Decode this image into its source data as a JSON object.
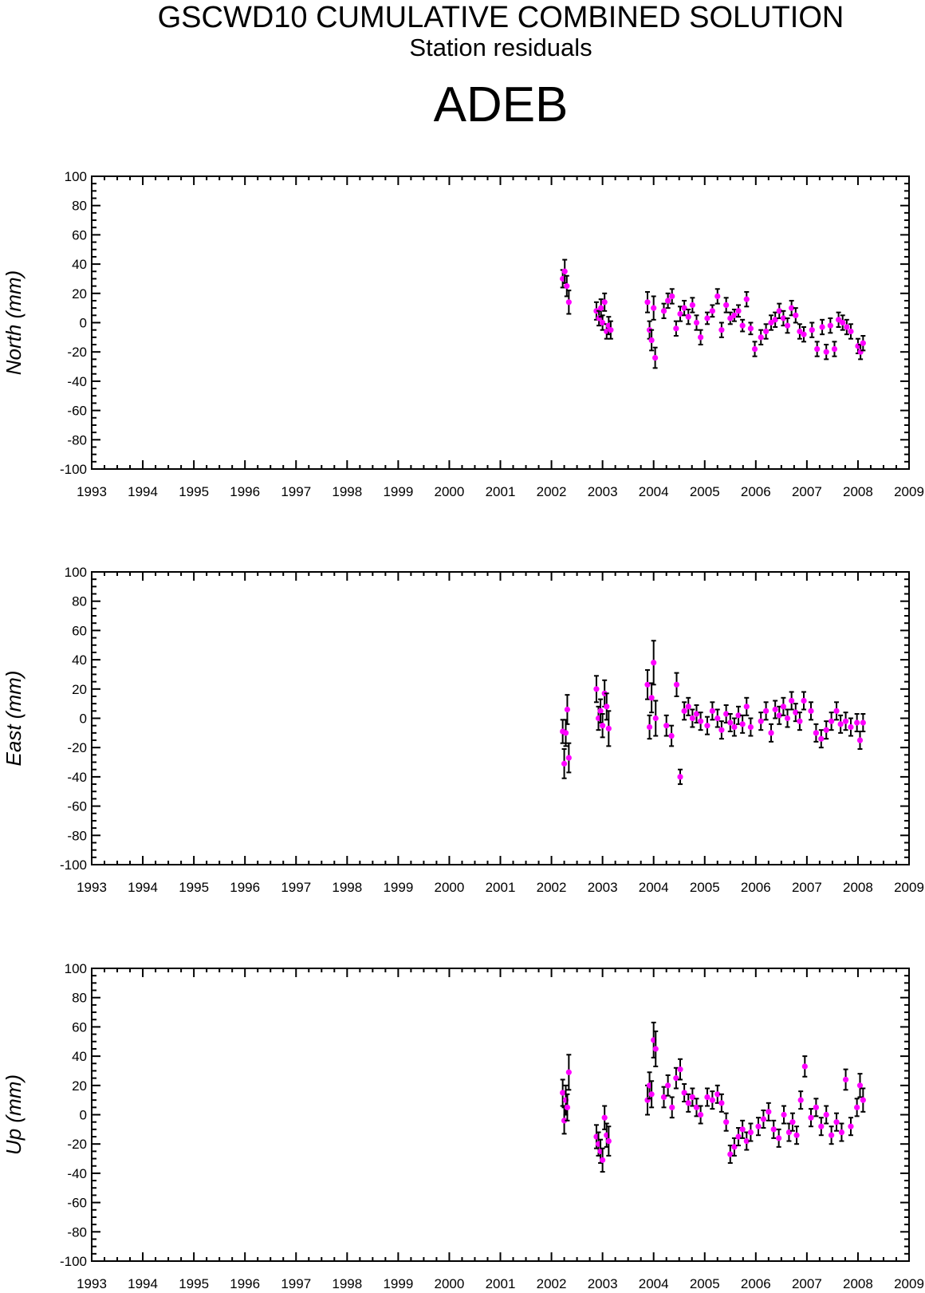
{
  "title": "GSCWD10 CUMULATIVE COMBINED SOLUTION",
  "subtitle": "Station residuals",
  "station": "ADEB",
  "colors": {
    "marker": "#ff00ff",
    "errorbar": "#000000",
    "axis": "#000000"
  },
  "chart_data": [
    {
      "type": "scatter",
      "ylabel": "North (mm)",
      "xlim": [
        1993,
        2009
      ],
      "ylim": [
        -100,
        100
      ],
      "x_ticks": [
        "1993",
        "1994",
        "1995",
        "1996",
        "1997",
        "1998",
        "1999",
        "2000",
        "2001",
        "2002",
        "2003",
        "2004",
        "2005",
        "2006",
        "2007",
        "2008",
        "2009"
      ],
      "y_ticks": [
        "100",
        "80",
        "60",
        "40",
        "20",
        "0",
        "-20",
        "-40",
        "-60",
        "-80",
        "-100"
      ],
      "points": [
        [
          2002.22,
          30,
          6
        ],
        [
          2002.26,
          35,
          8
        ],
        [
          2002.3,
          25,
          7
        ],
        [
          2002.34,
          14,
          8
        ],
        [
          2002.88,
          8,
          6
        ],
        [
          2002.93,
          3,
          5
        ],
        [
          2002.97,
          10,
          6
        ],
        [
          2003.0,
          0,
          5
        ],
        [
          2003.04,
          14,
          6
        ],
        [
          2003.08,
          -6,
          5
        ],
        [
          2003.12,
          -2,
          6
        ],
        [
          2003.16,
          -5,
          6
        ],
        [
          2003.88,
          14,
          7
        ],
        [
          2003.92,
          -5,
          6
        ],
        [
          2003.96,
          -12,
          7
        ],
        [
          2004.0,
          10,
          8
        ],
        [
          2004.03,
          -24,
          7
        ],
        [
          2004.2,
          8,
          5
        ],
        [
          2004.28,
          15,
          5
        ],
        [
          2004.36,
          18,
          5
        ],
        [
          2004.44,
          -4,
          5
        ],
        [
          2004.52,
          6,
          5
        ],
        [
          2004.6,
          10,
          5
        ],
        [
          2004.68,
          4,
          5
        ],
        [
          2004.76,
          12,
          5
        ],
        [
          2004.84,
          0,
          5
        ],
        [
          2004.92,
          -10,
          5
        ],
        [
          2005.05,
          3,
          4
        ],
        [
          2005.15,
          8,
          4
        ],
        [
          2005.25,
          18,
          5
        ],
        [
          2005.33,
          -5,
          5
        ],
        [
          2005.42,
          12,
          5
        ],
        [
          2005.5,
          3,
          4
        ],
        [
          2005.58,
          5,
          4
        ],
        [
          2005.66,
          8,
          4
        ],
        [
          2005.74,
          -2,
          4
        ],
        [
          2005.82,
          16,
          5
        ],
        [
          2005.9,
          -4,
          4
        ],
        [
          2005.98,
          -18,
          5
        ],
        [
          2006.1,
          -10,
          5
        ],
        [
          2006.2,
          -6,
          5
        ],
        [
          2006.3,
          0,
          5
        ],
        [
          2006.38,
          2,
          5
        ],
        [
          2006.46,
          8,
          5
        ],
        [
          2006.54,
          3,
          5
        ],
        [
          2006.62,
          -2,
          5
        ],
        [
          2006.7,
          10,
          5
        ],
        [
          2006.78,
          5,
          5
        ],
        [
          2006.86,
          -6,
          5
        ],
        [
          2006.94,
          -8,
          5
        ],
        [
          2007.1,
          -5,
          5
        ],
        [
          2007.2,
          -18,
          5
        ],
        [
          2007.3,
          -3,
          5
        ],
        [
          2007.38,
          -20,
          5
        ],
        [
          2007.46,
          -2,
          5
        ],
        [
          2007.54,
          -18,
          5
        ],
        [
          2007.62,
          2,
          5
        ],
        [
          2007.7,
          0,
          5
        ],
        [
          2007.78,
          -3,
          5
        ],
        [
          2007.86,
          -6,
          5
        ],
        [
          2008.0,
          -16,
          5
        ],
        [
          2008.05,
          -20,
          5
        ],
        [
          2008.1,
          -14,
          5
        ]
      ]
    },
    {
      "type": "scatter",
      "ylabel": "East (mm)",
      "xlim": [
        1993,
        2009
      ],
      "ylim": [
        -100,
        100
      ],
      "x_ticks": [
        "1993",
        "1994",
        "1995",
        "1996",
        "1997",
        "1998",
        "1999",
        "2000",
        "2001",
        "2002",
        "2003",
        "2004",
        "2005",
        "2006",
        "2007",
        "2008",
        "2009"
      ],
      "y_ticks": [
        "100",
        "80",
        "60",
        "40",
        "20",
        "0",
        "-20",
        "-40",
        "-60",
        "-80",
        "-100"
      ],
      "points": [
        [
          2002.22,
          -9,
          8
        ],
        [
          2002.25,
          -31,
          10
        ],
        [
          2002.28,
          -10,
          9
        ],
        [
          2002.31,
          6,
          10
        ],
        [
          2002.34,
          -27,
          10
        ],
        [
          2002.88,
          20,
          9
        ],
        [
          2002.92,
          0,
          8
        ],
        [
          2002.96,
          5,
          8
        ],
        [
          2003.0,
          -5,
          8
        ],
        [
          2003.04,
          17,
          9
        ],
        [
          2003.08,
          8,
          9
        ],
        [
          2003.12,
          -7,
          12
        ],
        [
          2003.88,
          23,
          10
        ],
        [
          2003.92,
          -6,
          8
        ],
        [
          2003.96,
          14,
          10
        ],
        [
          2004.0,
          38,
          15
        ],
        [
          2004.04,
          0,
          12
        ],
        [
          2004.25,
          -5,
          7
        ],
        [
          2004.35,
          -12,
          7
        ],
        [
          2004.45,
          23,
          8
        ],
        [
          2004.52,
          -40,
          5
        ],
        [
          2004.6,
          5,
          6
        ],
        [
          2004.68,
          8,
          6
        ],
        [
          2004.76,
          0,
          6
        ],
        [
          2004.84,
          3,
          6
        ],
        [
          2004.92,
          -2,
          6
        ],
        [
          2005.05,
          -5,
          6
        ],
        [
          2005.15,
          5,
          6
        ],
        [
          2005.25,
          0,
          6
        ],
        [
          2005.33,
          -8,
          6
        ],
        [
          2005.42,
          3,
          6
        ],
        [
          2005.5,
          -3,
          6
        ],
        [
          2005.58,
          -6,
          6
        ],
        [
          2005.66,
          2,
          6
        ],
        [
          2005.74,
          -4,
          6
        ],
        [
          2005.82,
          8,
          6
        ],
        [
          2005.9,
          -6,
          6
        ],
        [
          2006.1,
          -2,
          6
        ],
        [
          2006.2,
          5,
          6
        ],
        [
          2006.3,
          -10,
          6
        ],
        [
          2006.38,
          6,
          6
        ],
        [
          2006.46,
          2,
          6
        ],
        [
          2006.54,
          8,
          6
        ],
        [
          2006.62,
          0,
          6
        ],
        [
          2006.7,
          12,
          6
        ],
        [
          2006.78,
          4,
          6
        ],
        [
          2006.86,
          -2,
          6
        ],
        [
          2006.94,
          12,
          6
        ],
        [
          2007.08,
          5,
          6
        ],
        [
          2007.18,
          -10,
          6
        ],
        [
          2007.28,
          -14,
          6
        ],
        [
          2007.38,
          -8,
          6
        ],
        [
          2007.48,
          -2,
          6
        ],
        [
          2007.58,
          5,
          6
        ],
        [
          2007.66,
          -4,
          6
        ],
        [
          2007.76,
          -2,
          6
        ],
        [
          2007.86,
          -6,
          6
        ],
        [
          2007.98,
          -3,
          6
        ],
        [
          2008.04,
          -15,
          6
        ],
        [
          2008.1,
          -3,
          6
        ]
      ]
    },
    {
      "type": "scatter",
      "ylabel": "Up (mm)",
      "xlim": [
        1993,
        2009
      ],
      "ylim": [
        -100,
        100
      ],
      "x_ticks": [
        "1993",
        "1994",
        "1995",
        "1996",
        "1997",
        "1998",
        "1999",
        "2000",
        "2001",
        "2002",
        "2003",
        "2004",
        "2005",
        "2006",
        "2007",
        "2008",
        "2009"
      ],
      "y_ticks": [
        "100",
        "80",
        "60",
        "40",
        "20",
        "0",
        "-20",
        "-40",
        "-60",
        "-80",
        "-100"
      ],
      "points": [
        [
          2002.22,
          15,
          9
        ],
        [
          2002.25,
          -4,
          9
        ],
        [
          2002.28,
          10,
          10
        ],
        [
          2002.31,
          5,
          9
        ],
        [
          2002.34,
          29,
          12
        ],
        [
          2002.88,
          -15,
          8
        ],
        [
          2002.92,
          -20,
          8
        ],
        [
          2002.96,
          -25,
          8
        ],
        [
          2003.0,
          -31,
          8
        ],
        [
          2003.04,
          -2,
          8
        ],
        [
          2003.08,
          -14,
          8
        ],
        [
          2003.12,
          -18,
          10
        ],
        [
          2003.88,
          10,
          10
        ],
        [
          2003.92,
          20,
          9
        ],
        [
          2003.96,
          14,
          9
        ],
        [
          2004.0,
          51,
          12
        ],
        [
          2004.04,
          45,
          12
        ],
        [
          2004.2,
          12,
          7
        ],
        [
          2004.28,
          20,
          7
        ],
        [
          2004.36,
          5,
          7
        ],
        [
          2004.44,
          25,
          7
        ],
        [
          2004.52,
          31,
          7
        ],
        [
          2004.6,
          15,
          6
        ],
        [
          2004.68,
          8,
          6
        ],
        [
          2004.76,
          12,
          6
        ],
        [
          2004.84,
          5,
          6
        ],
        [
          2004.92,
          0,
          6
        ],
        [
          2005.05,
          12,
          6
        ],
        [
          2005.15,
          10,
          6
        ],
        [
          2005.25,
          14,
          6
        ],
        [
          2005.33,
          8,
          6
        ],
        [
          2005.42,
          -5,
          6
        ],
        [
          2005.5,
          -27,
          6
        ],
        [
          2005.58,
          -22,
          6
        ],
        [
          2005.66,
          -15,
          6
        ],
        [
          2005.74,
          -10,
          6
        ],
        [
          2005.82,
          -18,
          6
        ],
        [
          2005.9,
          -12,
          6
        ],
        [
          2006.05,
          -8,
          6
        ],
        [
          2006.15,
          -3,
          6
        ],
        [
          2006.25,
          2,
          6
        ],
        [
          2006.35,
          -10,
          6
        ],
        [
          2006.45,
          -16,
          6
        ],
        [
          2006.55,
          0,
          6
        ],
        [
          2006.65,
          -12,
          6
        ],
        [
          2006.72,
          -5,
          6
        ],
        [
          2006.8,
          -14,
          6
        ],
        [
          2006.88,
          10,
          6
        ],
        [
          2006.96,
          33,
          7
        ],
        [
          2007.08,
          -2,
          6
        ],
        [
          2007.18,
          5,
          6
        ],
        [
          2007.28,
          -8,
          6
        ],
        [
          2007.38,
          0,
          6
        ],
        [
          2007.48,
          -14,
          6
        ],
        [
          2007.58,
          -5,
          6
        ],
        [
          2007.68,
          -12,
          6
        ],
        [
          2007.76,
          24,
          7
        ],
        [
          2007.86,
          -8,
          6
        ],
        [
          2007.98,
          5,
          6
        ],
        [
          2008.04,
          20,
          8
        ],
        [
          2008.1,
          10,
          8
        ]
      ]
    }
  ]
}
